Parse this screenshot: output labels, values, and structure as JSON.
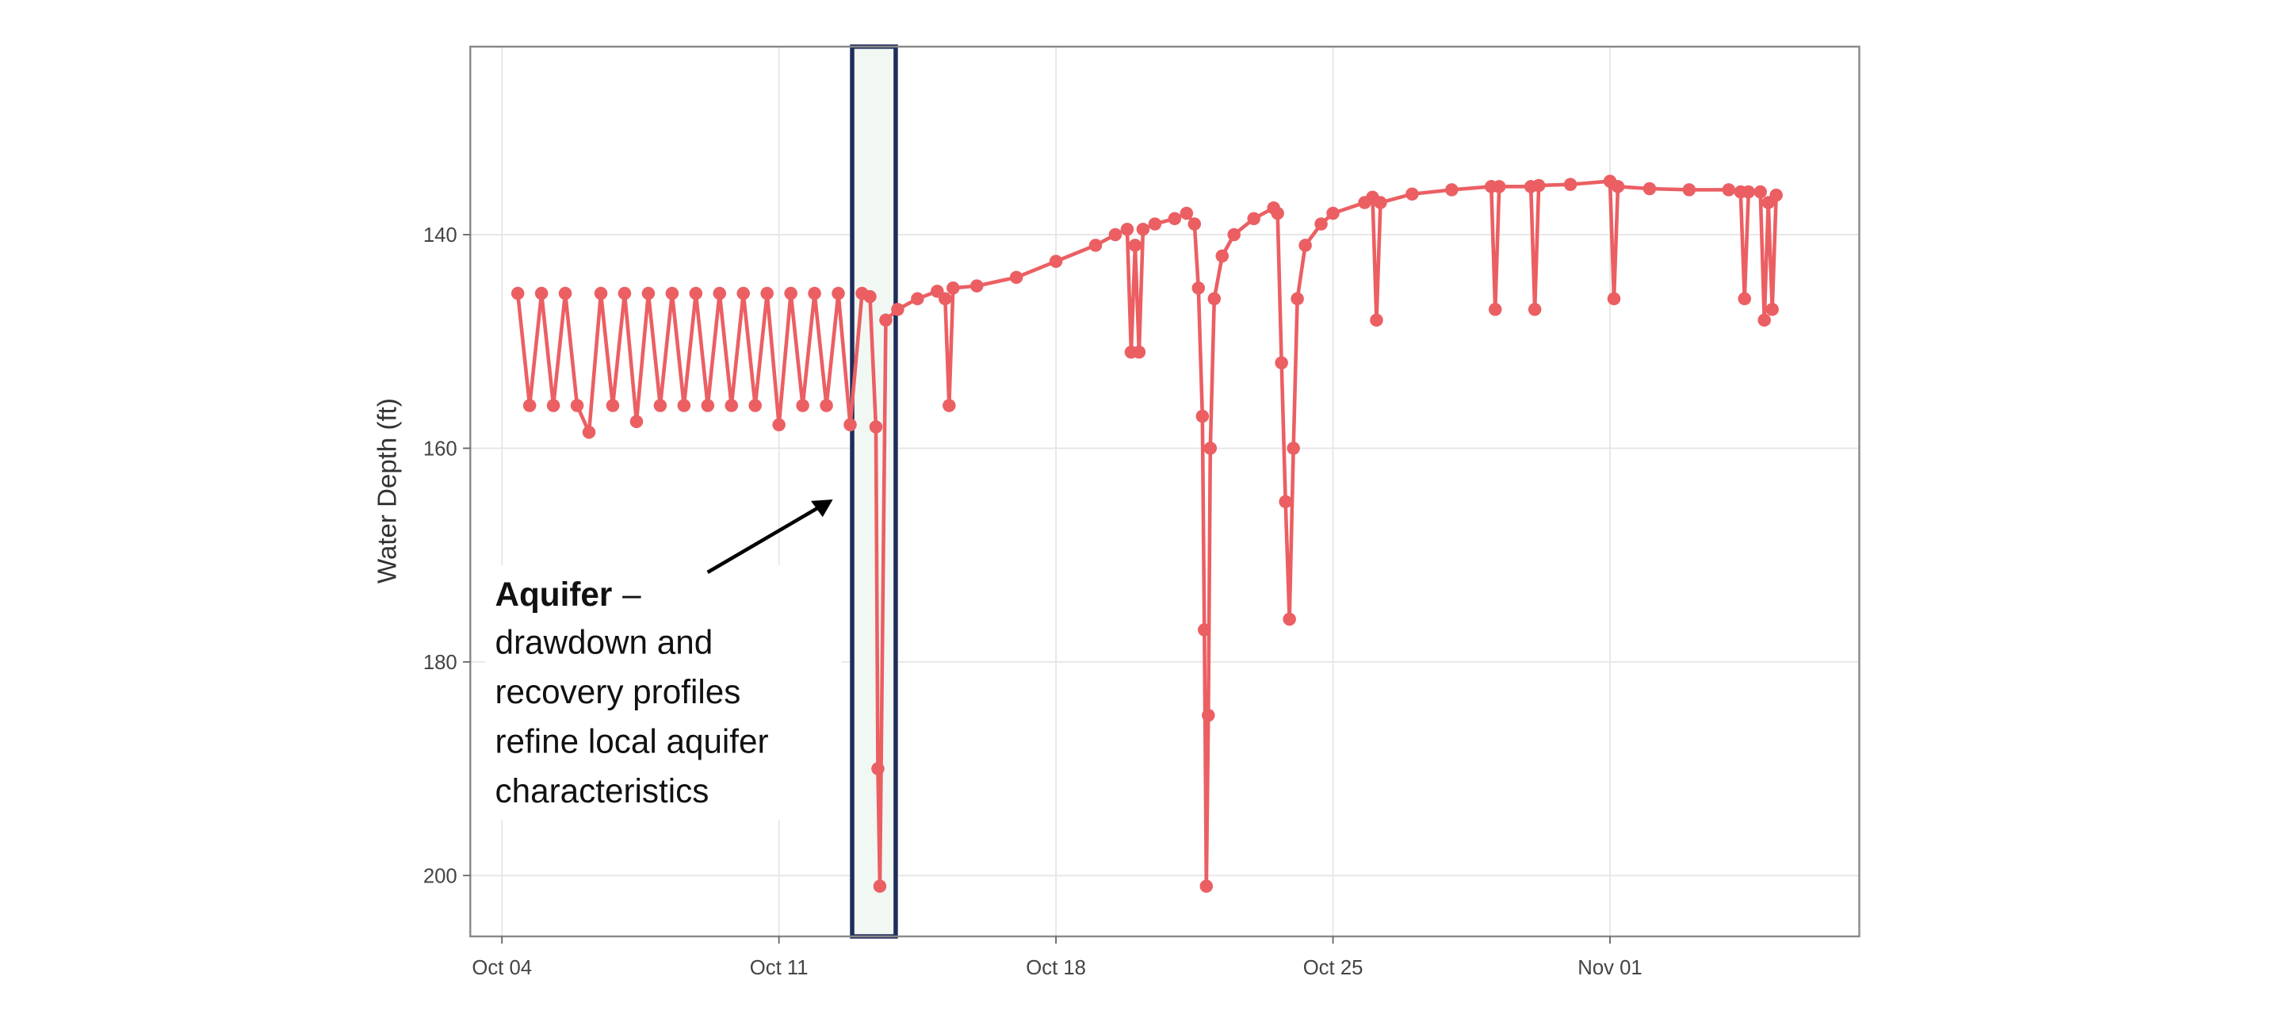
{
  "chart_data": {
    "type": "line",
    "y_label": "Water Depth (ft)",
    "color": "#eb5f63",
    "y_inverted": true,
    "grid": true,
    "ylim": [
      205.7,
      122.4
    ],
    "yticks": [
      140,
      160,
      180,
      200
    ],
    "xlim": [
      -0.8,
      34.3
    ],
    "xticks": [
      {
        "value": 0,
        "label": "Oct 04"
      },
      {
        "value": 7,
        "label": "Oct 11"
      },
      {
        "value": 14,
        "label": "Oct 18"
      },
      {
        "value": 21,
        "label": "Oct 25"
      },
      {
        "value": 28,
        "label": "Nov 01"
      }
    ],
    "highlight": {
      "x": [
        8.85,
        9.95
      ],
      "color": "#f1f8f3",
      "border": "#1f2d5a"
    },
    "annotation": {
      "heading": "Aquifer",
      "heading_rest": "–",
      "lines": [
        "drawdown and",
        "recovery profiles",
        "refine local aquifer",
        "characteristics"
      ]
    },
    "series": [
      {
        "name": "Water Depth",
        "color": "#eb5f63",
        "x": [
          0.4,
          0.7,
          1.0,
          1.3,
          1.6,
          1.9,
          2.2,
          2.5,
          2.8,
          3.1,
          3.4,
          3.7,
          4.0,
          4.3,
          4.6,
          4.9,
          5.2,
          5.5,
          5.8,
          6.1,
          6.4,
          6.7,
          7.0,
          7.3,
          7.6,
          7.9,
          8.2,
          8.5,
          8.8,
          9.1,
          9.3,
          9.45,
          9.5,
          9.55,
          9.7,
          10.0,
          10.5,
          11.0,
          11.2,
          11.3,
          11.4,
          12.0,
          13.0,
          14.0,
          15.0,
          15.5,
          15.8,
          15.9,
          16.0,
          16.1,
          16.2,
          16.5,
          17.0,
          17.3,
          17.5,
          17.6,
          17.7,
          17.75,
          17.8,
          17.85,
          17.9,
          18.0,
          18.2,
          18.5,
          19.0,
          19.5,
          19.6,
          19.7,
          19.8,
          19.9,
          20.0,
          20.1,
          20.3,
          20.7,
          21.0,
          21.8,
          22.0,
          22.1,
          22.2,
          23.0,
          24.0,
          25.0,
          25.1,
          25.2,
          26.0,
          26.1,
          26.2,
          27.0,
          28.0,
          28.1,
          28.2,
          29.0,
          30.0,
          31.0,
          31.3,
          31.4,
          31.5,
          31.8,
          31.9,
          32.0,
          32.1,
          32.2
        ],
        "values": [
          145.5,
          156,
          145.5,
          156,
          145.5,
          156,
          158.5,
          145.5,
          156,
          145.5,
          157.5,
          145.5,
          156,
          145.5,
          156,
          145.5,
          156,
          145.5,
          156,
          145.5,
          156,
          145.5,
          157.8,
          145.5,
          156,
          145.5,
          156,
          145.5,
          157.8,
          145.5,
          145.8,
          158,
          190,
          201,
          148,
          147,
          146,
          145.3,
          146,
          156,
          145,
          144.8,
          144,
          142.5,
          141,
          140,
          139.5,
          151,
          141,
          151,
          139.5,
          139,
          138.5,
          138,
          139,
          145,
          157,
          177,
          201,
          185,
          160,
          146,
          142,
          140,
          138.5,
          137.5,
          138,
          152,
          165,
          176,
          160,
          146,
          141,
          139,
          138,
          137,
          136.5,
          148,
          137,
          136.2,
          135.8,
          135.5,
          147,
          135.5,
          135.5,
          147,
          135.4,
          135.3,
          135,
          146,
          135.5,
          135.7,
          135.8,
          135.8,
          136,
          146,
          136,
          136,
          148,
          137,
          147,
          136.3
        ]
      }
    ]
  }
}
